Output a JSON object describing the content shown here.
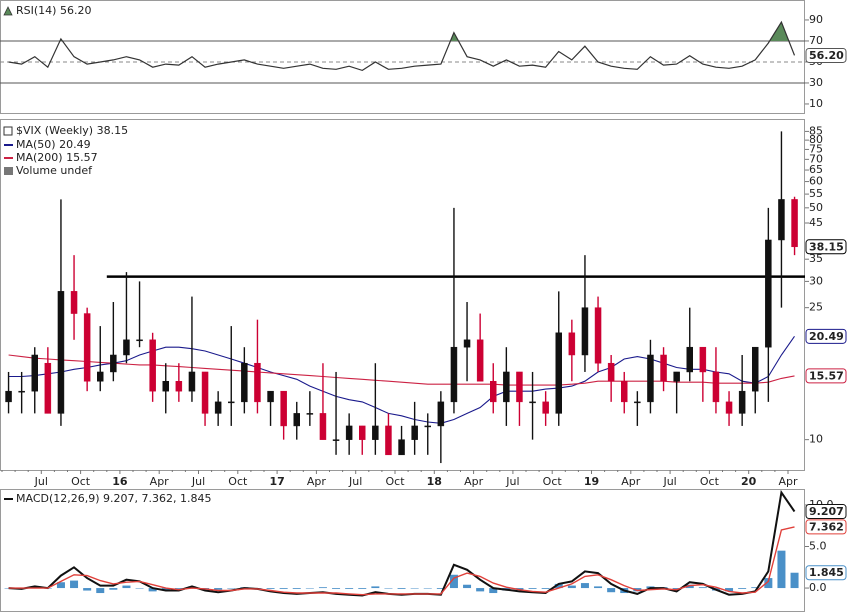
{
  "chart_data": [
    {
      "type": "rsi",
      "title": "RSI(14) 56.20",
      "ylim": [
        1.4,
        109
      ],
      "yticks": [
        10,
        30,
        50,
        70,
        90
      ],
      "hlines": [
        30,
        70
      ],
      "midline": 50,
      "overbought": 70,
      "overbought_color": "#5a8a5a",
      "series": [
        {
          "color": "#333333",
          "values": [
            50,
            48,
            55,
            45,
            72,
            55,
            48,
            50,
            52,
            55,
            52,
            45,
            48,
            47,
            55,
            45,
            48,
            50,
            52,
            48,
            46,
            44,
            46,
            48,
            44,
            43,
            46,
            42,
            50,
            43,
            44,
            46,
            47,
            48,
            78,
            55,
            52,
            46,
            52,
            46,
            47,
            45,
            60,
            52,
            65,
            50,
            46,
            44,
            43,
            55,
            47,
            48,
            56,
            48,
            45,
            44,
            46,
            52,
            68,
            88,
            56.2
          ],
          "value_labels": [
            null,
            null,
            null,
            null,
            null,
            null,
            null,
            null,
            null,
            null,
            null,
            null,
            null,
            null,
            null,
            null,
            null,
            null,
            null,
            null,
            null,
            null,
            null,
            null,
            null,
            null,
            null,
            null,
            null,
            null,
            null,
            null,
            null,
            null,
            null,
            null,
            null,
            null,
            null,
            null,
            null,
            null,
            null,
            null,
            null,
            null,
            null,
            null,
            null,
            null,
            null,
            null,
            null,
            null,
            null,
            null,
            null,
            null,
            null,
            null,
            "56.20"
          ]
        }
      ]
    },
    {
      "type": "candlestick",
      "title": "$VIX (Weekly) 38.15",
      "volume_label": "Volume undef",
      "log_scale": true,
      "ylim": [
        8.1,
        92
      ],
      "yticks": [
        10,
        25,
        30,
        35,
        45,
        50,
        55,
        60,
        65,
        70,
        75,
        80,
        85
      ],
      "support_line": 31,
      "up_color": "#111111",
      "down_color": "#cc0033",
      "categories": [
        null,
        null,
        null,
        "Jul",
        null,
        null,
        "Oct",
        null,
        null,
        "16",
        null,
        null,
        "Apr",
        null,
        null,
        "Jul",
        null,
        null,
        "Oct",
        null,
        null,
        "17",
        null,
        null,
        "Apr",
        null,
        null,
        "Jul",
        null,
        null,
        "Oct",
        null,
        null,
        "18",
        null,
        null,
        "Apr",
        null,
        null,
        "Jul",
        null,
        null,
        "Oct",
        null,
        null,
        "19",
        null,
        null,
        "Apr",
        null,
        null,
        "Jul",
        null,
        null,
        "Oct",
        null,
        null,
        "20",
        null,
        null,
        "Apr"
      ],
      "open": [
        13,
        14,
        14,
        17,
        12,
        28,
        24,
        15,
        16,
        18,
        20,
        20,
        14,
        15,
        14,
        16,
        12,
        13,
        13,
        17,
        13,
        14,
        11,
        12,
        12,
        10,
        10,
        11,
        10,
        11,
        9,
        10,
        11,
        11,
        13,
        19,
        20,
        15,
        13,
        16,
        13,
        13,
        12,
        21,
        18,
        25,
        17,
        15,
        13,
        13,
        18,
        15,
        16,
        19,
        16,
        13,
        12,
        14,
        19,
        40,
        53
      ],
      "high": [
        16,
        16,
        19,
        19,
        53,
        36,
        25,
        22,
        26,
        32,
        30,
        21,
        17,
        17,
        27,
        16,
        14,
        22,
        19,
        23,
        14,
        14,
        13,
        14,
        17,
        16,
        12,
        11,
        17,
        12,
        11,
        13,
        12,
        14,
        50,
        26,
        24,
        17,
        19,
        16,
        16,
        14,
        28,
        23,
        36,
        27,
        18,
        16,
        14,
        20,
        19,
        16,
        25,
        19,
        19,
        14,
        18,
        19,
        50,
        85,
        54
      ],
      "low": [
        12,
        12,
        12,
        12,
        11,
        20,
        14,
        14,
        15,
        17,
        19,
        13,
        12,
        13,
        13,
        11,
        11,
        11,
        12,
        12,
        11,
        10,
        10,
        11,
        10,
        9,
        9,
        9,
        9,
        9,
        9,
        9,
        9,
        8.5,
        12,
        15,
        15,
        12,
        11,
        11,
        10,
        11,
        11,
        15,
        16,
        16,
        13,
        12,
        11,
        12,
        14,
        12,
        15,
        13,
        12,
        11,
        11,
        12,
        13,
        25,
        36
      ],
      "close": [
        14,
        14,
        18,
        12,
        28,
        24,
        15,
        16,
        18,
        20,
        20,
        14,
        15,
        14,
        16,
        12,
        13,
        13,
        17,
        13,
        14,
        11,
        12,
        12,
        10,
        10,
        11,
        10,
        11,
        9,
        10,
        11,
        11,
        13,
        19,
        20,
        15,
        13,
        16,
        13,
        13,
        12,
        21,
        18,
        25,
        17,
        15,
        13,
        13,
        18,
        15,
        16,
        19,
        16,
        13,
        12,
        14,
        19,
        40,
        53,
        38.15
      ],
      "series": [
        {
          "name": "MA(50) 20.49",
          "color": "#1a1a8c",
          "values": [
            15.5,
            15.5,
            15.6,
            15.8,
            16,
            16.3,
            16.5,
            16.8,
            17,
            17.3,
            18,
            18.5,
            19,
            19,
            18.8,
            18.5,
            18,
            17.5,
            17,
            16.5,
            16,
            15.6,
            15.2,
            14.5,
            14,
            13.5,
            13.2,
            13,
            12.5,
            12,
            11.8,
            11.5,
            11.3,
            11.2,
            11.5,
            12,
            12.5,
            13.5,
            14,
            14,
            14,
            14.2,
            14.3,
            14.5,
            15,
            16,
            16.5,
            17.5,
            17.8,
            17.5,
            17,
            16.5,
            16.3,
            16.3,
            16,
            15.8,
            15,
            14.8,
            15.5,
            18,
            20.49
          ]
        },
        {
          "name": "MA(200) 15.57",
          "color": "#cc2244",
          "values": [
            18,
            17.8,
            17.6,
            17.5,
            17.4,
            17.3,
            17.2,
            17.1,
            17,
            16.9,
            16.8,
            16.8,
            16.7,
            16.6,
            16.5,
            16.4,
            16.3,
            16.2,
            16.1,
            16,
            15.9,
            15.8,
            15.7,
            15.6,
            15.5,
            15.4,
            15.3,
            15.2,
            15.1,
            15,
            14.9,
            14.8,
            14.7,
            14.7,
            14.7,
            14.7,
            14.7,
            14.7,
            14.6,
            14.6,
            14.6,
            14.6,
            14.6,
            14.7,
            14.8,
            15,
            15,
            15,
            15,
            15,
            15,
            14.9,
            14.9,
            14.9,
            14.8,
            14.8,
            14.8,
            14.8,
            14.9,
            15.3,
            15.57
          ]
        }
      ]
    },
    {
      "type": "macd",
      "title": "MACD(12,26,9) 9.207, 7.362, 1.845",
      "ylim": [
        -2.4,
        11.8
      ],
      "yticks": [
        {
          "value": 0,
          "label": "0.0"
        },
        {
          "value": 5,
          "label": "5.0"
        },
        {
          "value": 10,
          "label": "10.0"
        }
      ],
      "series": [
        {
          "color": "#111111",
          "kind": "line",
          "values": [
            0,
            -0.1,
            0.2,
            0,
            1.5,
            2.5,
            1.2,
            0.3,
            0.3,
            1,
            0.8,
            0,
            -0.3,
            -0.3,
            0.2,
            -0.3,
            -0.5,
            -0.3,
            0,
            -0.1,
            -0.4,
            -0.6,
            -0.7,
            -0.6,
            -0.5,
            -0.7,
            -0.8,
            -0.9,
            -0.5,
            -0.7,
            -0.8,
            -0.7,
            -0.7,
            -0.8,
            2.8,
            2.2,
            1,
            0,
            -0.2,
            -0.4,
            -0.5,
            -0.6,
            0.5,
            0.8,
            2,
            1.8,
            0.5,
            -0.3,
            -0.7,
            0,
            0,
            -0.4,
            0.7,
            0.5,
            -0.2,
            -0.8,
            -0.7,
            -0.4,
            2,
            11.5,
            9.207
          ]
        },
        {
          "color": "#e0403a",
          "kind": "line",
          "values": [
            0,
            0,
            0,
            0,
            0.8,
            1.6,
            1.5,
            0.9,
            0.5,
            0.7,
            0.8,
            0.4,
            0,
            -0.2,
            0,
            -0.1,
            -0.3,
            -0.3,
            -0.1,
            -0.1,
            -0.3,
            -0.5,
            -0.6,
            -0.6,
            -0.6,
            -0.6,
            -0.7,
            -0.8,
            -0.7,
            -0.7,
            -0.7,
            -0.7,
            -0.7,
            -0.7,
            1.2,
            1.8,
            1.4,
            0.6,
            0.1,
            -0.2,
            -0.4,
            -0.5,
            0,
            0.5,
            1.4,
            1.6,
            1,
            0.3,
            -0.3,
            -0.2,
            -0.1,
            -0.2,
            0.3,
            0.4,
            0.1,
            -0.4,
            -0.6,
            -0.5,
            0.8,
            7,
            7.362
          ]
        },
        {
          "color": "#4a90c8",
          "kind": "histogram",
          "values": [
            0,
            -0.1,
            0.2,
            0,
            0.7,
            0.9,
            -0.3,
            -0.6,
            -0.2,
            0.3,
            0,
            -0.4,
            -0.3,
            -0.1,
            0.2,
            -0.2,
            -0.2,
            0,
            0.1,
            0,
            -0.1,
            -0.1,
            -0.1,
            0,
            0.1,
            -0.1,
            -0.1,
            -0.1,
            0.2,
            0,
            -0.1,
            0,
            0,
            -0.1,
            1.6,
            0.4,
            -0.4,
            -0.6,
            -0.3,
            -0.2,
            -0.1,
            -0.1,
            0.5,
            0.3,
            0.6,
            0.2,
            -0.5,
            -0.6,
            -0.4,
            0.2,
            0.1,
            -0.2,
            0.4,
            0.1,
            -0.3,
            -0.4,
            -0.1,
            0.1,
            1.2,
            4.5,
            1.845
          ]
        }
      ]
    }
  ]
}
